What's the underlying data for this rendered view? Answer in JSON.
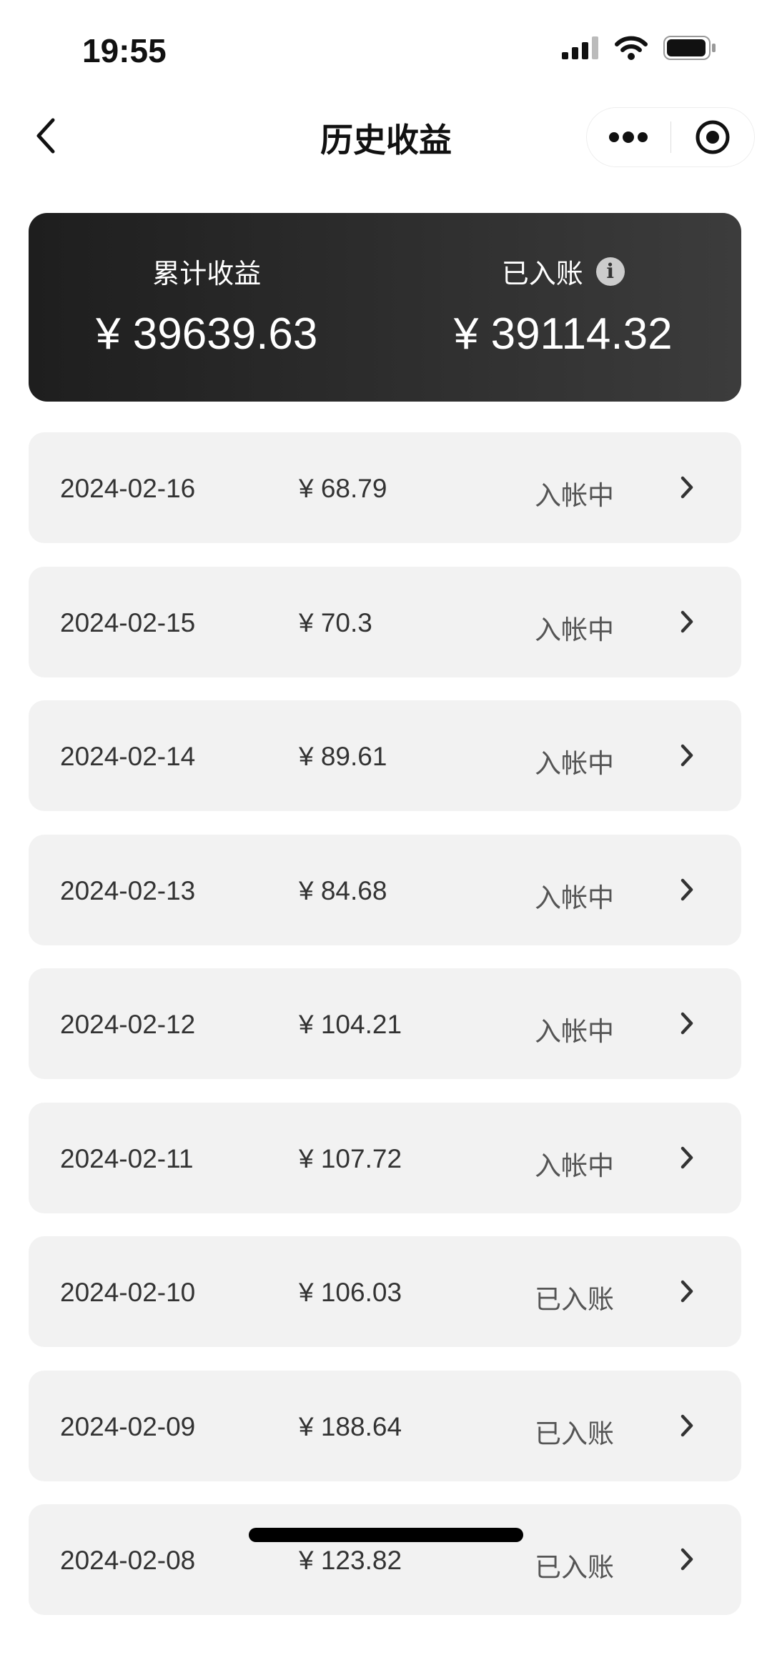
{
  "status_bar": {
    "time": "19:55"
  },
  "nav": {
    "title": "历史收益"
  },
  "summary": {
    "total_label": "累计收益",
    "total_amount": "¥ 39639.63",
    "credited_label": "已入账",
    "credited_amount": "¥ 39114.32"
  },
  "records": [
    {
      "date": "2024-02-16",
      "amount": "¥ 68.79",
      "status": "入帐中"
    },
    {
      "date": "2024-02-15",
      "amount": "¥ 70.3",
      "status": "入帐中"
    },
    {
      "date": "2024-02-14",
      "amount": "¥ 89.61",
      "status": "入帐中"
    },
    {
      "date": "2024-02-13",
      "amount": "¥ 84.68",
      "status": "入帐中"
    },
    {
      "date": "2024-02-12",
      "amount": "¥ 104.21",
      "status": "入帐中"
    },
    {
      "date": "2024-02-11",
      "amount": "¥ 107.72",
      "status": "入帐中"
    },
    {
      "date": "2024-02-10",
      "amount": "¥ 106.03",
      "status": "已入账"
    },
    {
      "date": "2024-02-09",
      "amount": "¥ 188.64",
      "status": "已入账"
    },
    {
      "date": "2024-02-08",
      "amount": "¥ 123.82",
      "status": "已入账"
    }
  ],
  "colors": {
    "card_dark": "#1e1e1e",
    "row_bg": "#f2f2f2"
  }
}
